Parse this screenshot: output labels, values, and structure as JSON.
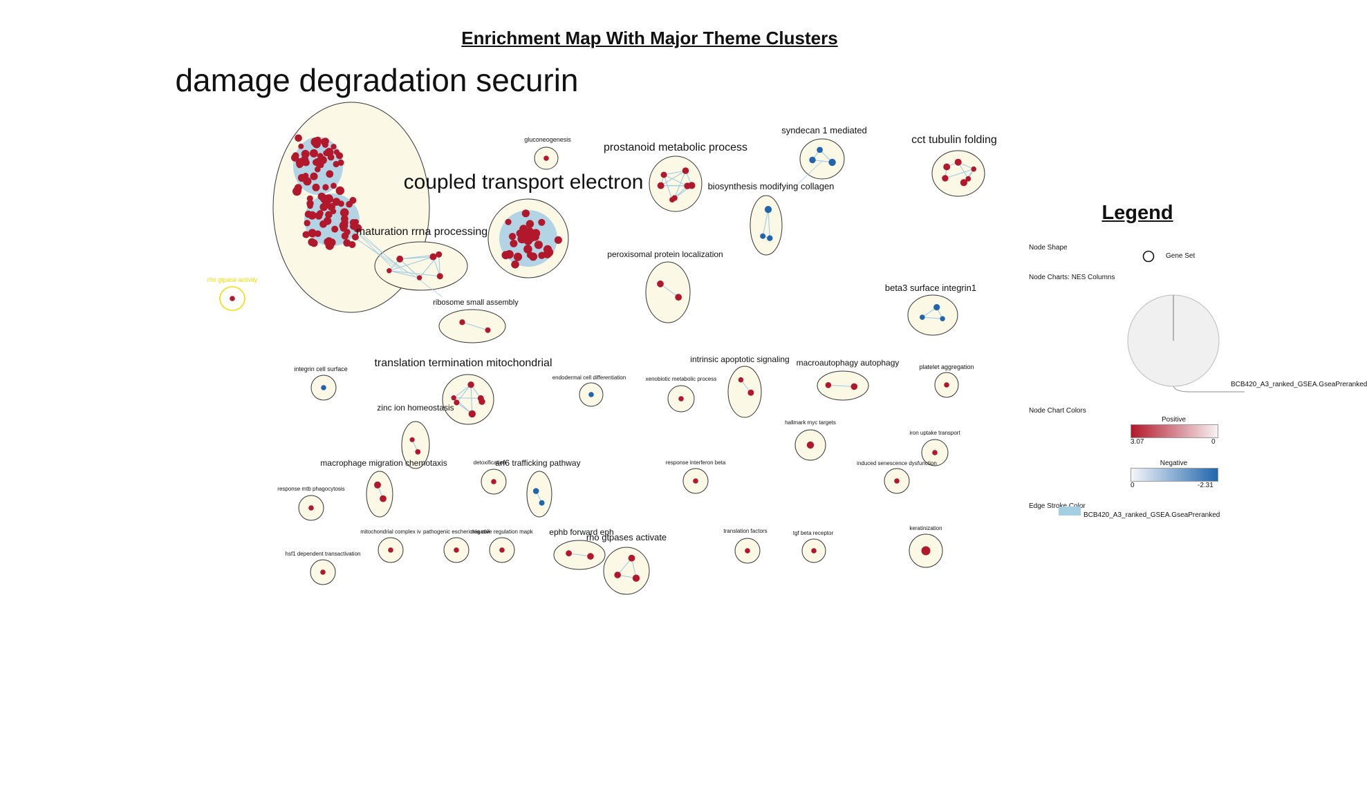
{
  "title": "Enrichment Map With Major Theme Clusters",
  "colors": {
    "cluster_fill": "#fbf8e6",
    "cluster_stroke": "#333333",
    "node_positive": "#b2182b",
    "node_negative": "#2166ac",
    "edge": "#a6cee3",
    "highlight": "#f0e000",
    "pie_fill": "#f0f0f0"
  },
  "clusters": [
    {
      "label": "damage degradation securin",
      "size": "xl",
      "nodes": 96,
      "sign": "positive"
    },
    {
      "label": "coupled transport electron",
      "size": "large",
      "nodes": 40,
      "sign": "positive"
    },
    {
      "label": "maturation rrna processing",
      "size": "medium",
      "nodes": 6,
      "sign": "positive"
    },
    {
      "label": "prostanoid metabolic process",
      "size": "medium",
      "nodes": 7,
      "sign": "positive"
    },
    {
      "label": "syndecan 1 mediated",
      "size": "medium",
      "nodes": 3,
      "sign": "negative"
    },
    {
      "label": "cct tubulin folding",
      "size": "medium",
      "nodes": 6,
      "sign": "positive"
    },
    {
      "label": "biosynthesis modifying collagen",
      "size": "medium",
      "nodes": 3,
      "sign": "negative"
    },
    {
      "label": "gluconeogenesis",
      "size": "small",
      "nodes": 1,
      "sign": "positive"
    },
    {
      "label": "peroxisomal protein localization",
      "size": "small",
      "nodes": 2,
      "sign": "positive"
    },
    {
      "label": "beta3 surface integrin1",
      "size": "medium",
      "nodes": 3,
      "sign": "negative"
    },
    {
      "label": "ribosome small assembly",
      "size": "small",
      "nodes": 2,
      "sign": "positive"
    },
    {
      "label": "rho gtpase activity",
      "size": "small",
      "nodes": 1,
      "sign": "positive"
    },
    {
      "label": "translation termination mitochondrial",
      "size": "medium",
      "nodes": 6,
      "sign": "positive"
    },
    {
      "label": "integrin cell surface",
      "size": "small",
      "nodes": 1,
      "sign": "negative"
    },
    {
      "label": "endodermal cell differentiation",
      "size": "small",
      "nodes": 1,
      "sign": "negative"
    },
    {
      "label": "xenobiotic metabolic process",
      "size": "small",
      "nodes": 1,
      "sign": "positive"
    },
    {
      "label": "intrinsic apoptotic signaling",
      "size": "small",
      "nodes": 2,
      "sign": "positive"
    },
    {
      "label": "macroautophagy autophagy",
      "size": "medium",
      "nodes": 2,
      "sign": "positive"
    },
    {
      "label": "platelet aggregation",
      "size": "small",
      "nodes": 1,
      "sign": "positive"
    },
    {
      "label": "zinc ion homeostasis",
      "size": "small",
      "nodes": 2,
      "sign": "positive"
    },
    {
      "label": "hallmark myc targets",
      "size": "small",
      "nodes": 1,
      "sign": "positive"
    },
    {
      "label": "iron uptake transport",
      "size": "small",
      "nodes": 1,
      "sign": "positive"
    },
    {
      "label": "macrophage migration chemotaxis",
      "size": "small",
      "nodes": 2,
      "sign": "positive"
    },
    {
      "label": "detoxification",
      "size": "small",
      "nodes": 1,
      "sign": "positive"
    },
    {
      "label": "arf6 trafficking pathway",
      "size": "small",
      "nodes": 2,
      "sign": "negative"
    },
    {
      "label": "response interferon beta",
      "size": "small",
      "nodes": 1,
      "sign": "positive"
    },
    {
      "label": "induced senescence dysfunction",
      "size": "small",
      "nodes": 1,
      "sign": "positive"
    },
    {
      "label": "response mtb phagocytosis",
      "size": "small",
      "nodes": 1,
      "sign": "positive"
    },
    {
      "label": "mitochondrial complex iv",
      "size": "small",
      "nodes": 1,
      "sign": "positive"
    },
    {
      "label": "pathogenic escherichia coli",
      "size": "small",
      "nodes": 1,
      "sign": "positive"
    },
    {
      "label": "negative regulation mapk",
      "size": "small",
      "nodes": 1,
      "sign": "positive"
    },
    {
      "label": "ephb forward eph",
      "size": "medium",
      "nodes": 2,
      "sign": "positive"
    },
    {
      "label": "rho gtpases activate",
      "size": "medium",
      "nodes": 3,
      "sign": "positive"
    },
    {
      "label": "translation factors",
      "size": "small",
      "nodes": 1,
      "sign": "positive"
    },
    {
      "label": "tgf beta receptor",
      "size": "small",
      "nodes": 1,
      "sign": "positive"
    },
    {
      "label": "keratinization",
      "size": "small",
      "nodes": 1,
      "sign": "positive"
    },
    {
      "label": "hsf1 dependent transactivation",
      "size": "small",
      "nodes": 1,
      "sign": "positive"
    }
  ],
  "legend": {
    "title": "Legend",
    "node_shape_label": "Node Shape",
    "node_shape_value": "Gene Set",
    "node_charts_label": "Node Charts: NES Columns",
    "pie_label": "BCB420_A3_ranked_GSEA.GseaPreranked",
    "node_chart_colors_label": "Node Chart Colors",
    "positive_label": "Positive",
    "positive_min": "3.07",
    "positive_max": "0",
    "negative_label": "Negative",
    "negative_min": "0",
    "negative_max": "-2.31",
    "edge_stroke_label": "Edge Stroke Color",
    "edge_stroke_value": "BCB420_A3_ranked_GSEA.GseaPreranked"
  }
}
